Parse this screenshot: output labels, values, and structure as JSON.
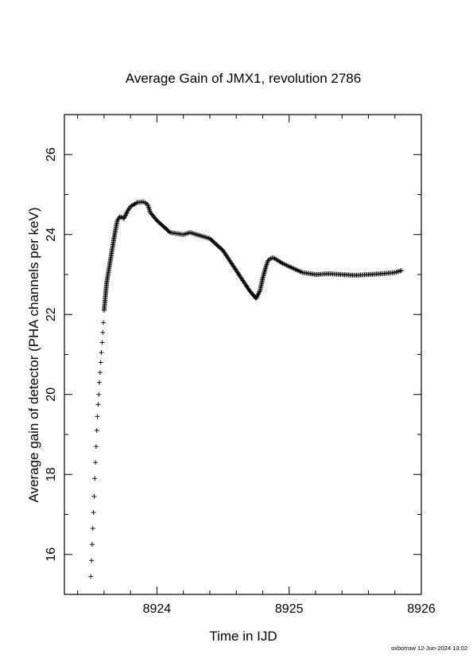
{
  "chart_data": {
    "type": "scatter",
    "title": "Average Gain of JMX1, revolution 2786",
    "xlabel": "Time in IJD",
    "ylabel": "Average gain of detector (PHA channels per keV)",
    "xlim": [
      8923.3,
      8926.0
    ],
    "ylim": [
      15.0,
      27.0
    ],
    "xticks": [
      8924,
      8925,
      8926
    ],
    "yticks": [
      16,
      18,
      20,
      22,
      24,
      26
    ],
    "xtick_labels": [
      "8924",
      "8925",
      "8926"
    ],
    "ytick_labels": [
      "16",
      "18",
      "20",
      "22",
      "24",
      "26"
    ],
    "marker": "+",
    "grid": false,
    "series": [
      {
        "x": [
          8923.5,
          8923.505,
          8923.51,
          8923.515,
          8923.52,
          8923.525,
          8923.53,
          8923.535,
          8923.54,
          8923.545,
          8923.55,
          8923.555,
          8923.56,
          8923.565,
          8923.57,
          8923.575,
          8923.58,
          8923.585,
          8923.59,
          8923.595,
          8923.6,
          8923.62,
          8923.65,
          8923.68,
          8923.7,
          8923.72,
          8923.75,
          8923.78,
          8923.8,
          8923.85,
          8923.9,
          8923.93,
          8923.95,
          8924.0,
          8924.1,
          8924.2,
          8924.25,
          8924.3,
          8924.35,
          8924.4,
          8924.5,
          8924.6,
          8924.7,
          8924.75,
          8924.78,
          8924.8,
          8924.82,
          8924.84,
          8924.86,
          8924.88,
          8924.9,
          8924.95,
          8925.0,
          8925.1,
          8925.2,
          8925.3,
          8925.4,
          8925.5,
          8925.6,
          8925.7,
          8925.8,
          8925.85
        ],
        "y": [
          15.45,
          15.85,
          16.25,
          16.65,
          17.05,
          17.45,
          17.9,
          18.3,
          18.7,
          19.1,
          19.45,
          19.75,
          20.0,
          20.3,
          20.55,
          20.8,
          21.05,
          21.3,
          21.55,
          21.8,
          22.1,
          22.8,
          23.4,
          24.0,
          24.35,
          24.45,
          24.4,
          24.6,
          24.7,
          24.8,
          24.82,
          24.75,
          24.55,
          24.35,
          24.05,
          24.0,
          24.05,
          24.0,
          23.95,
          23.9,
          23.6,
          23.1,
          22.6,
          22.4,
          22.6,
          22.9,
          23.15,
          23.35,
          23.4,
          23.42,
          23.38,
          23.28,
          23.2,
          23.05,
          23.0,
          23.02,
          23.0,
          22.98,
          23.0,
          23.02,
          23.05,
          23.1
        ]
      }
    ]
  },
  "footer": {
    "stamp": "oxborrow 12-Jun-2024 13:02"
  }
}
